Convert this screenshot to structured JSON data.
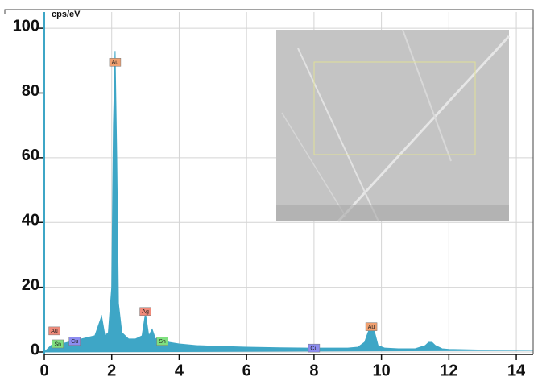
{
  "chart_data": {
    "type": "area",
    "y_label": "cps/eV",
    "x": [
      0,
      0.1,
      0.2,
      0.3,
      0.4,
      0.5,
      0.7,
      0.9,
      1.1,
      1.3,
      1.5,
      1.6,
      1.7,
      1.8,
      1.9,
      2.0,
      2.05,
      2.1,
      2.15,
      2.2,
      2.3,
      2.5,
      2.7,
      2.9,
      3.0,
      3.1,
      3.2,
      3.3,
      3.4,
      3.5,
      3.7,
      4.0,
      4.5,
      5,
      6,
      7,
      8,
      8.5,
      9,
      9.3,
      9.5,
      9.6,
      9.7,
      9.8,
      9.9,
      10.1,
      10.5,
      11,
      11.3,
      11.4,
      11.5,
      11.6,
      11.8,
      12,
      13,
      14,
      14.5
    ],
    "values": [
      0,
      1,
      2,
      2.5,
      2.5,
      2.5,
      3,
      3.5,
      4,
      4.5,
      5,
      8,
      11,
      5,
      6,
      20,
      70,
      93,
      60,
      15,
      6,
      4,
      4,
      5,
      12,
      5,
      7,
      4,
      4.5,
      4,
      3,
      2.5,
      2,
      1.8,
      1.5,
      1.3,
      1.2,
      1.2,
      1.2,
      1.5,
      3,
      6,
      8.5,
      6,
      2,
      1.2,
      1,
      1,
      2,
      3,
      3,
      2,
      1,
      0.8,
      0.6,
      0.5,
      0.5
    ],
    "color": "#3ea6c6",
    "xlim": [
      0,
      14.5
    ],
    "ylim": [
      0,
      105
    ],
    "xticks": [
      0,
      2,
      4,
      6,
      8,
      10,
      12,
      14
    ],
    "yticks": [
      0,
      20,
      40,
      60,
      80,
      100
    ],
    "grid": true,
    "annotations": [
      {
        "text": "Au",
        "x": 0.3,
        "y": 6.5,
        "color": "#f08a7a"
      },
      {
        "text": "Sn",
        "x": 0.4,
        "y": 2.5,
        "color": "#7fe07f"
      },
      {
        "text": "Cu",
        "x": 0.9,
        "y": 3.3,
        "color": "#8c8cf0"
      },
      {
        "text": "Au",
        "x": 2.1,
        "y": 89.5,
        "color": "#f0a070"
      },
      {
        "text": "Ag",
        "x": 3.0,
        "y": 12.5,
        "color": "#f08a7a"
      },
      {
        "text": "Sn",
        "x": 3.5,
        "y": 3.3,
        "color": "#7fe07f"
      },
      {
        "text": "Cu",
        "x": 8.0,
        "y": 1.2,
        "color": "#8c8cf0"
      },
      {
        "text": "Au",
        "x": 9.7,
        "y": 7.8,
        "color": "#f0a070"
      }
    ]
  }
}
